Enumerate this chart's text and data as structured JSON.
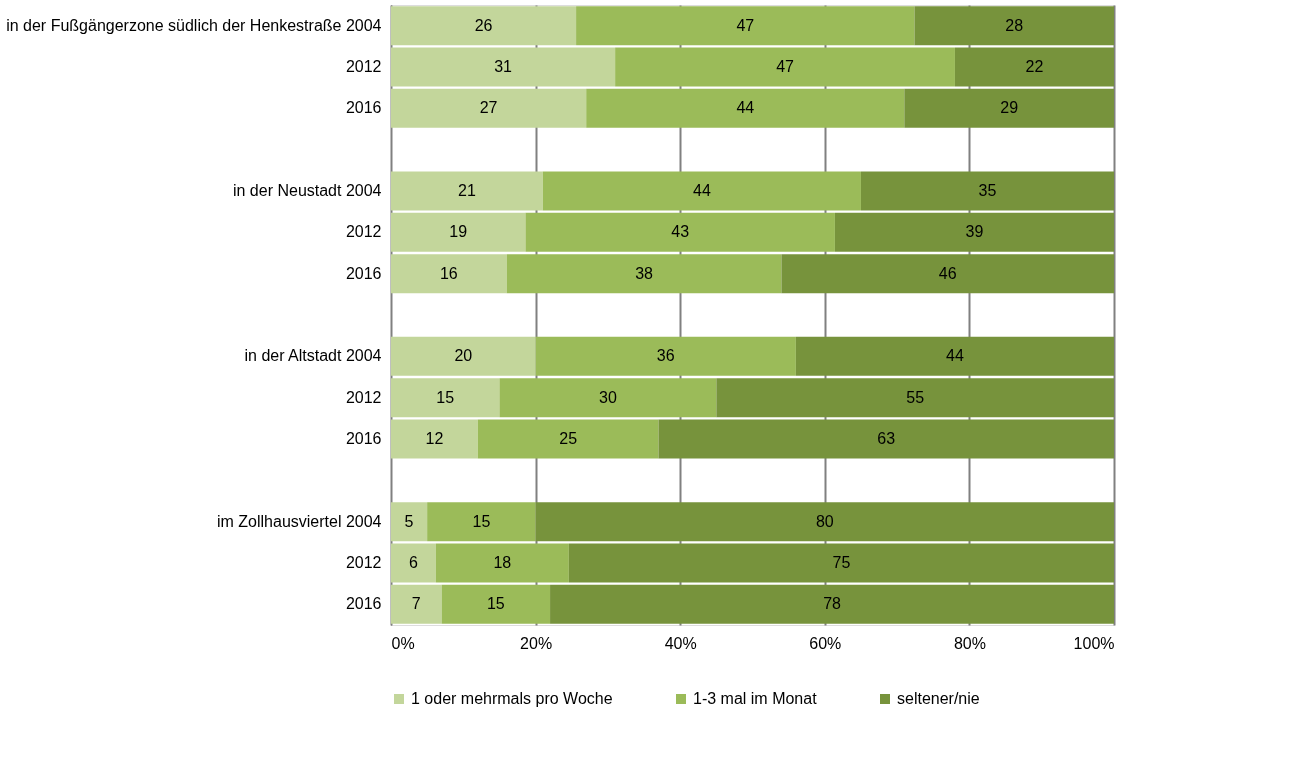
{
  "chart_data": {
    "type": "bar",
    "orientation": "horizontal",
    "stacked": true,
    "categories": [
      "in der Fußgängerzone südlich der Henkestraße 2004",
      "2012",
      "2016",
      null,
      "in der Neustadt 2004",
      "2012",
      "2016",
      null,
      "in der Altstadt 2004",
      "2012",
      "2016",
      null,
      "im Zollhausviertel 2004",
      "2012",
      "2016"
    ],
    "series": [
      {
        "name": "1 oder mehrmals pro Woche",
        "color": "#c3d69b",
        "values": [
          25.6,
          31,
          27,
          null,
          21,
          18.6,
          16,
          null,
          20,
          15,
          12,
          null,
          5,
          6.2,
          7
        ],
        "value_labels": [
          "26",
          "31",
          "27",
          null,
          "21",
          "19",
          "16",
          null,
          "20",
          "15",
          "12",
          null,
          "5",
          "6",
          "7"
        ]
      },
      {
        "name": "1-3 mal im Monat",
        "color": "#9bbb59",
        "values": [
          46.8,
          47,
          44,
          null,
          44,
          42.8,
          38,
          null,
          36,
          30,
          25,
          null,
          15,
          18.4,
          15
        ],
        "value_labels": [
          "47",
          "47",
          "44",
          null,
          "44",
          "43",
          "38",
          null,
          "36",
          "30",
          "25",
          null,
          "15",
          "18",
          "15"
        ]
      },
      {
        "name": "seltener/nie",
        "color": "#77933c",
        "values": [
          27.6,
          22,
          29,
          null,
          35,
          38.6,
          46,
          null,
          44,
          55,
          63,
          null,
          80,
          75.4,
          78
        ],
        "value_labels": [
          "28",
          "22",
          "29",
          null,
          "35",
          "39",
          "46",
          null,
          "44",
          "55",
          "63",
          null,
          "80",
          "75",
          "78"
        ]
      }
    ],
    "xlim": [
      0,
      100
    ],
    "xticks": [
      {
        "value": 0,
        "label": "0%"
      },
      {
        "value": 20,
        "label": "20%"
      },
      {
        "value": 40,
        "label": "40%"
      },
      {
        "value": 60,
        "label": "60%"
      },
      {
        "value": 80,
        "label": "80%"
      },
      {
        "value": 100,
        "label": "100%"
      }
    ],
    "grid": "x",
    "legend": "bottom"
  }
}
